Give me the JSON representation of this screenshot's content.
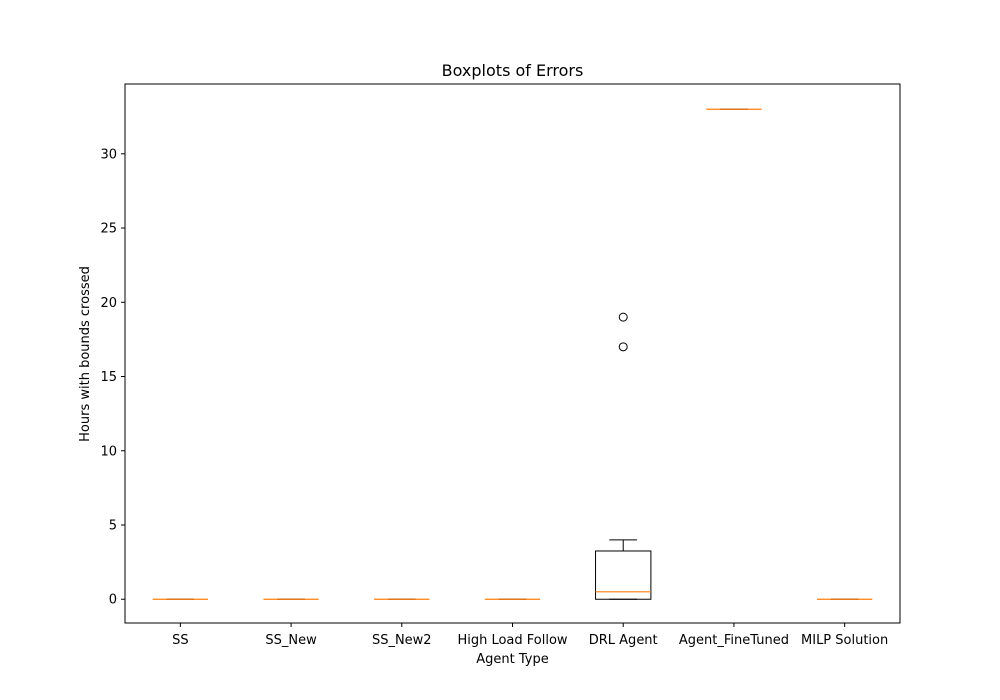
{
  "chart_data": {
    "type": "box",
    "title": "Boxplots of Errors",
    "xlabel": "Agent Type",
    "ylabel": "Hours with bounds crossed",
    "ylim": [
      -1.6,
      34.7
    ],
    "yticks": [
      0,
      5,
      10,
      15,
      20,
      25,
      30
    ],
    "grid": false,
    "categories": [
      "SS",
      "SS_New",
      "SS_New2",
      "High Load Follow",
      "DRL Agent",
      "Agent_FineTuned",
      "MILP Solution"
    ],
    "boxes": [
      {
        "category": "SS",
        "min": 0,
        "q1": 0,
        "median": 0,
        "q3": 0,
        "max": 0,
        "outliers": []
      },
      {
        "category": "SS_New",
        "min": 0,
        "q1": 0,
        "median": 0,
        "q3": 0,
        "max": 0,
        "outliers": []
      },
      {
        "category": "SS_New2",
        "min": 0,
        "q1": 0,
        "median": 0,
        "q3": 0,
        "max": 0,
        "outliers": []
      },
      {
        "category": "High Load Follow",
        "min": 0,
        "q1": 0,
        "median": 0,
        "q3": 0,
        "max": 0,
        "outliers": []
      },
      {
        "category": "DRL Agent",
        "min": 0,
        "q1": 0,
        "median": 0.5,
        "q3": 3.25,
        "max": 4,
        "outliers": [
          17,
          19
        ]
      },
      {
        "category": "Agent_FineTuned",
        "min": 33,
        "q1": 33,
        "median": 33,
        "q3": 33,
        "max": 33,
        "outliers": []
      },
      {
        "category": "MILP Solution",
        "min": 0,
        "q1": 0,
        "median": 0,
        "q3": 0,
        "max": 0,
        "outliers": []
      }
    ],
    "colors": {
      "box": "#000000",
      "median": "#ff7f0e"
    }
  }
}
